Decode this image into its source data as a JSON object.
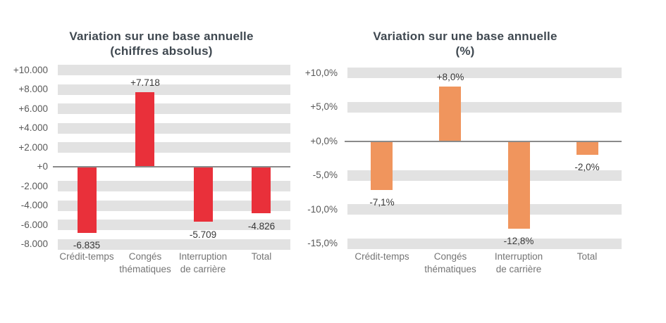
{
  "page": {
    "background_color": "#ffffff"
  },
  "chart_data": [
    {
      "type": "bar",
      "title": "Variation sur une base annuelle",
      "subtitle": "(chiffres absolus)",
      "categories": [
        "Crédit-temps",
        "Congés thématiques",
        "Interruption de carrière",
        "Total"
      ],
      "category_display": [
        "Crédit-temps",
        "Congés\nthématiques",
        "Interruption\nde carrière",
        "Total"
      ],
      "values": [
        -6835,
        7718,
        -5709,
        -4826
      ],
      "data_labels": [
        "-6.835",
        "+7.718",
        "-5.709",
        "-4.826"
      ],
      "y_ticks": [
        {
          "value": 10000,
          "label": "+10.000"
        },
        {
          "value": 8000,
          "label": "+8.000"
        },
        {
          "value": 6000,
          "label": "+6.000"
        },
        {
          "value": 4000,
          "label": "+4.000"
        },
        {
          "value": 2000,
          "label": "+2.000"
        },
        {
          "value": 0,
          "label": "+0"
        },
        {
          "value": -2000,
          "label": "-2.000"
        },
        {
          "value": -4000,
          "label": "-4.000"
        },
        {
          "value": -6000,
          "label": "-6.000"
        },
        {
          "value": -8000,
          "label": "-8.000"
        }
      ],
      "ylim": [
        -8500,
        10500
      ],
      "grid": "horizontal-bands-at-ticks-except-zero",
      "legend": "none",
      "colors": {
        "bar": "#e9303a",
        "band": "#e2e2e2",
        "zero_line": "#8a8a8a",
        "title": "#3f4850",
        "tick_label": "#595959",
        "category_label": "#757575",
        "data_label": "#383838"
      }
    },
    {
      "type": "bar",
      "title": "Variation sur une base annuelle",
      "subtitle": "(%)",
      "categories": [
        "Crédit-temps",
        "Congés thématiques",
        "Interruption de carrière",
        "Total"
      ],
      "category_display": [
        "Crédit-temps",
        "Congés\nthématiques",
        "Interruption\nde carrière",
        "Total"
      ],
      "values": [
        -7.1,
        8.0,
        -12.8,
        -2.0
      ],
      "data_labels": [
        "-7,1%",
        "+8,0%",
        "-12,8%",
        "-2,0%"
      ],
      "y_ticks": [
        {
          "value": 10,
          "label": "+10,0%"
        },
        {
          "value": 5,
          "label": "+5,0%"
        },
        {
          "value": 0,
          "label": "+0,0%"
        },
        {
          "value": -5,
          "label": "-5,0%"
        },
        {
          "value": -10,
          "label": "-10,0%"
        },
        {
          "value": -15,
          "label": "-15,0%"
        }
      ],
      "ylim": [
        -15.7,
        10.9
      ],
      "grid": "horizontal-bands-at-ticks-except-zero",
      "legend": "none",
      "colors": {
        "bar": "#f0955d",
        "band": "#e2e2e2",
        "zero_line": "#8a8a8a",
        "title": "#3f4850",
        "tick_label": "#595959",
        "category_label": "#757575",
        "data_label": "#383838"
      }
    }
  ]
}
